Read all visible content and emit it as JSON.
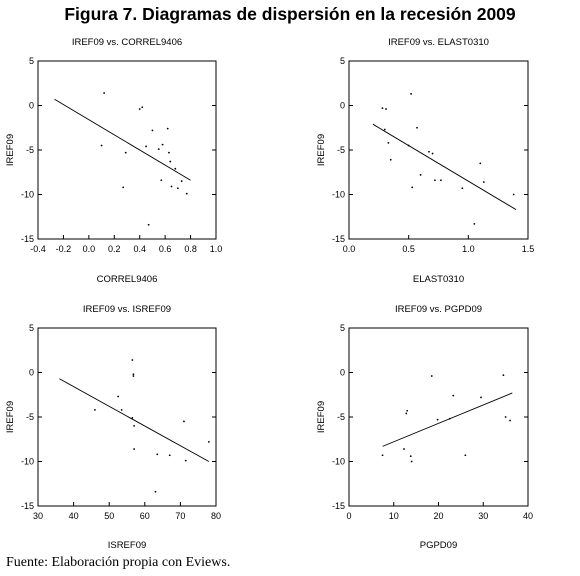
{
  "figure_title": "Figura 7. Diagramas de dispersión en la recesión 2009",
  "source_note": "Fuente: Elaboración propia con Eviews.",
  "chart_data": [
    {
      "type": "scatter",
      "title": "IREF09 vs. CORREL9406",
      "xlabel": "CORREL9406",
      "ylabel": "IREF09",
      "xlim": [
        -0.4,
        1.0
      ],
      "ylim": [
        -15,
        5
      ],
      "xticks": [
        "-0.4",
        "-0.2",
        "0.0",
        "0.2",
        "0.4",
        "0.6",
        "0.8",
        "1.0"
      ],
      "yticks": [
        "5",
        "0",
        "-5",
        "-10",
        "-15"
      ],
      "grid": false,
      "points": [
        {
          "x": 0.12,
          "y": 1.4
        },
        {
          "x": 0.1,
          "y": -4.5
        },
        {
          "x": 0.29,
          "y": -5.3
        },
        {
          "x": 0.27,
          "y": -9.2
        },
        {
          "x": 0.4,
          "y": -0.4
        },
        {
          "x": 0.42,
          "y": -0.2
        },
        {
          "x": 0.47,
          "y": -13.4
        },
        {
          "x": 0.5,
          "y": -2.8
        },
        {
          "x": 0.55,
          "y": -4.9
        },
        {
          "x": 0.58,
          "y": -4.4
        },
        {
          "x": 0.57,
          "y": -8.4
        },
        {
          "x": 0.62,
          "y": -2.6
        },
        {
          "x": 0.63,
          "y": -5.3
        },
        {
          "x": 0.64,
          "y": -6.3
        },
        {
          "x": 0.65,
          "y": -9.1
        },
        {
          "x": 0.68,
          "y": -7.1
        },
        {
          "x": 0.7,
          "y": -9.3
        },
        {
          "x": 0.73,
          "y": -8.5
        },
        {
          "x": 0.77,
          "y": -9.9
        },
        {
          "x": 0.45,
          "y": -4.6
        }
      ],
      "fit_line": [
        {
          "x": -0.27,
          "y": 0.7
        },
        {
          "x": 0.8,
          "y": -8.4
        }
      ]
    },
    {
      "type": "scatter",
      "title": "IREF09 vs. ELAST0310",
      "xlabel": "ELAST0310",
      "ylabel": "IREF09",
      "xlim": [
        0.0,
        1.5
      ],
      "ylim": [
        -15,
        5
      ],
      "xticks": [
        "0.0",
        "0.5",
        "1.0",
        "1.5"
      ],
      "yticks": [
        "5",
        "0",
        "-5",
        "-10",
        "-15"
      ],
      "grid": false,
      "points": [
        {
          "x": 0.28,
          "y": -0.3
        },
        {
          "x": 0.31,
          "y": -0.4
        },
        {
          "x": 0.3,
          "y": -2.7
        },
        {
          "x": 0.33,
          "y": -4.2
        },
        {
          "x": 0.35,
          "y": -6.1
        },
        {
          "x": 0.52,
          "y": 1.3
        },
        {
          "x": 0.5,
          "y": -4.5
        },
        {
          "x": 0.57,
          "y": -2.5
        },
        {
          "x": 0.53,
          "y": -9.2
        },
        {
          "x": 0.6,
          "y": -7.8
        },
        {
          "x": 0.67,
          "y": -5.2
        },
        {
          "x": 0.7,
          "y": -5.4
        },
        {
          "x": 0.72,
          "y": -8.4
        },
        {
          "x": 0.77,
          "y": -8.4
        },
        {
          "x": 0.95,
          "y": -9.3
        },
        {
          "x": 1.05,
          "y": -13.3
        },
        {
          "x": 1.1,
          "y": -6.5
        },
        {
          "x": 1.13,
          "y": -8.6
        },
        {
          "x": 1.38,
          "y": -10.0
        }
      ],
      "fit_line": [
        {
          "x": 0.2,
          "y": -2.1
        },
        {
          "x": 1.4,
          "y": -11.7
        }
      ]
    },
    {
      "type": "scatter",
      "title": "IREF09 vs. ISREF09",
      "xlabel": "ISREF09",
      "ylabel": "IREF09",
      "xlim": [
        30,
        80
      ],
      "ylim": [
        -15,
        5
      ],
      "xticks": [
        "30",
        "40",
        "50",
        "60",
        "70",
        "80"
      ],
      "yticks": [
        "5",
        "0",
        "-5",
        "-10",
        "-15"
      ],
      "grid": false,
      "points": [
        {
          "x": 46.0,
          "y": -4.2
        },
        {
          "x": 52.5,
          "y": -2.7
        },
        {
          "x": 53.5,
          "y": -4.2
        },
        {
          "x": 56.5,
          "y": 1.4
        },
        {
          "x": 56.8,
          "y": -0.2
        },
        {
          "x": 56.8,
          "y": -0.4
        },
        {
          "x": 56.5,
          "y": -5.1
        },
        {
          "x": 57.0,
          "y": -6.0
        },
        {
          "x": 57.0,
          "y": -8.6
        },
        {
          "x": 63.5,
          "y": -9.2
        },
        {
          "x": 63.0,
          "y": -13.4
        },
        {
          "x": 67.0,
          "y": -9.3
        },
        {
          "x": 71.0,
          "y": -5.5
        },
        {
          "x": 71.5,
          "y": -9.9
        },
        {
          "x": 78.0,
          "y": -7.8
        }
      ],
      "fit_line": [
        {
          "x": 36.0,
          "y": -0.7
        },
        {
          "x": 78.0,
          "y": -10.0
        }
      ]
    },
    {
      "type": "scatter",
      "title": "IREF09 vs. PGPD09",
      "xlabel": "PGPD09",
      "ylabel": "IREF09",
      "xlim": [
        0,
        40
      ],
      "ylim": [
        -15,
        5
      ],
      "xticks": [
        "0",
        "10",
        "20",
        "30",
        "40"
      ],
      "yticks": [
        "5",
        "0",
        "-5",
        "-10",
        "-15"
      ],
      "grid": false,
      "points": [
        {
          "x": 7.5,
          "y": -9.3
        },
        {
          "x": 12.3,
          "y": -8.6
        },
        {
          "x": 12.8,
          "y": -4.6
        },
        {
          "x": 13.0,
          "y": -4.3
        },
        {
          "x": 13.8,
          "y": -9.4
        },
        {
          "x": 14.0,
          "y": -10.0
        },
        {
          "x": 18.5,
          "y": -0.4
        },
        {
          "x": 19.8,
          "y": -5.3
        },
        {
          "x": 22.5,
          "y": -5.2
        },
        {
          "x": 23.3,
          "y": -2.6
        },
        {
          "x": 26.0,
          "y": -9.3
        },
        {
          "x": 29.5,
          "y": -2.8
        },
        {
          "x": 34.5,
          "y": -0.3
        },
        {
          "x": 35.0,
          "y": -5.0
        },
        {
          "x": 36.0,
          "y": -5.4
        }
      ],
      "fit_line": [
        {
          "x": 7.5,
          "y": -8.3
        },
        {
          "x": 36.5,
          "y": -2.3
        }
      ]
    }
  ]
}
